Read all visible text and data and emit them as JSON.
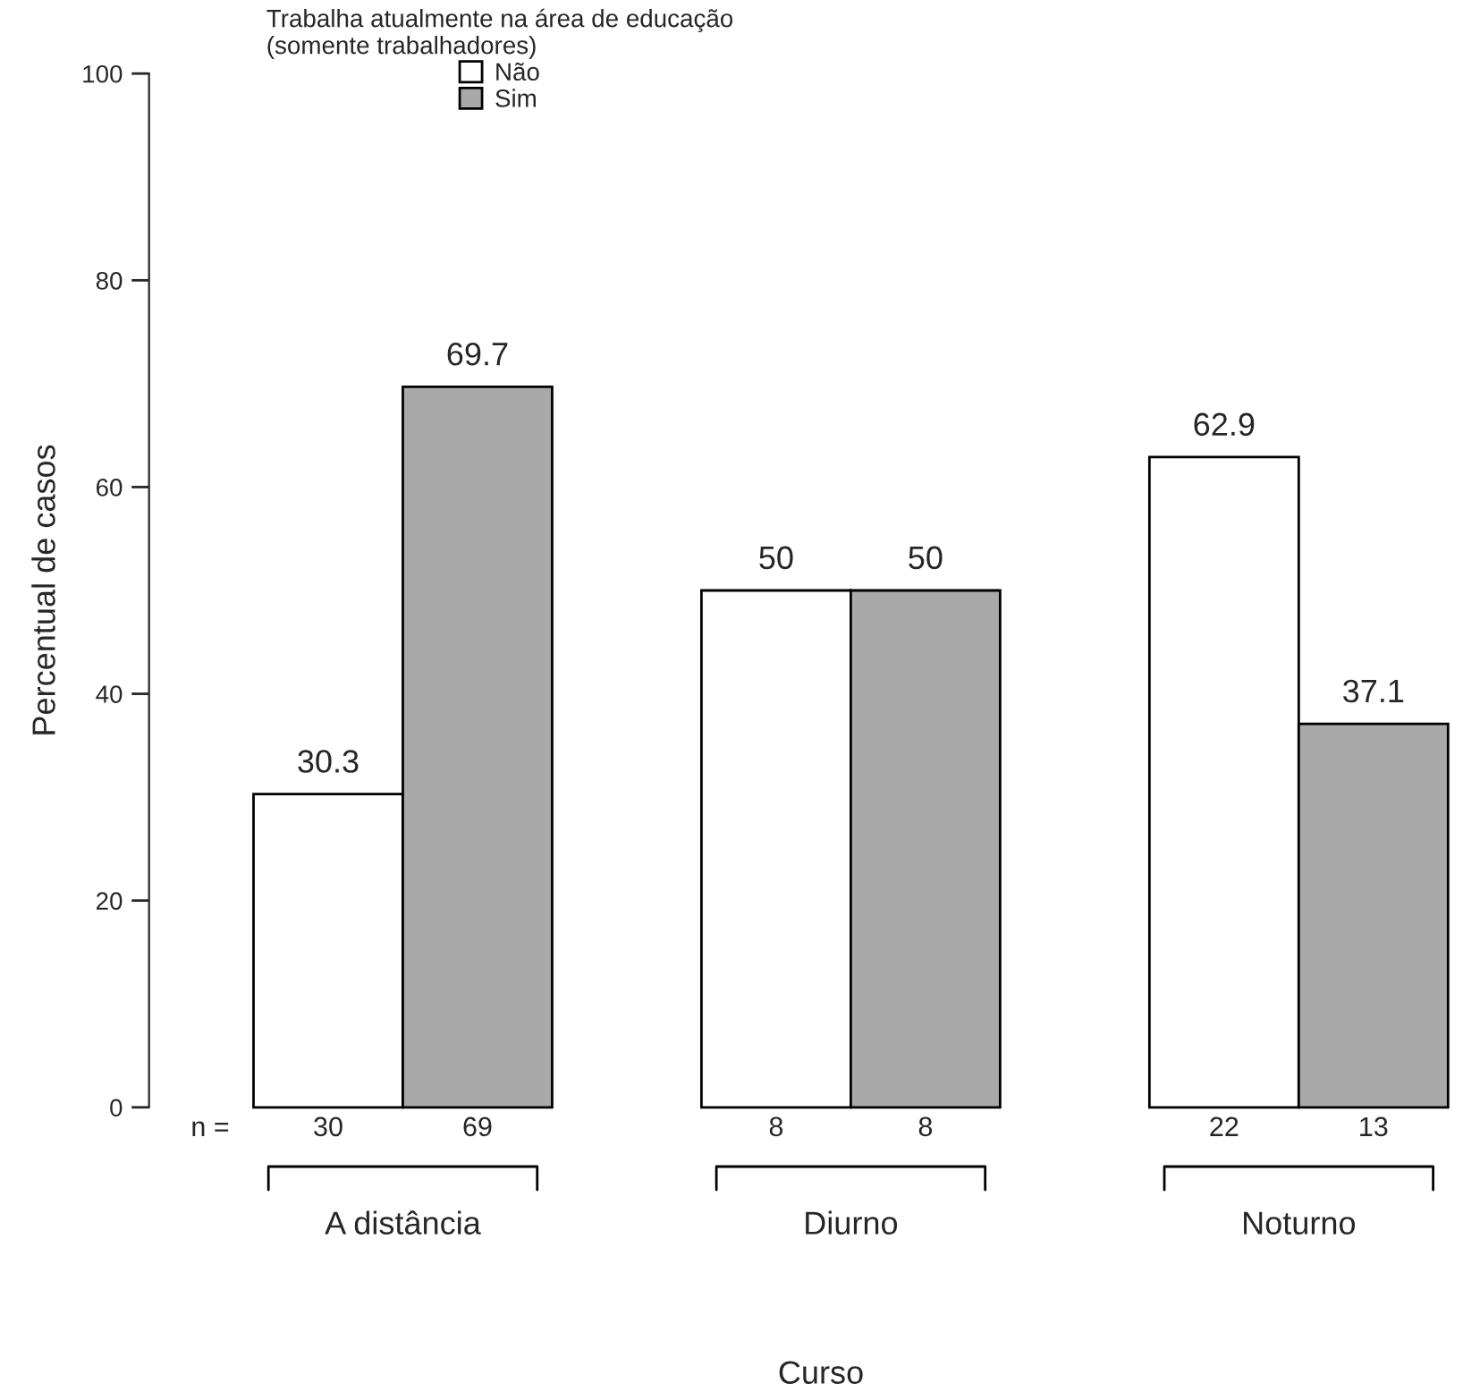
{
  "chart_data": {
    "type": "bar",
    "legend_title": "Trabalha atualmente na área de educação\n(somente trabalhadores)",
    "ylabel": "Percentual de casos",
    "xlabel": "Curso",
    "categories": [
      "A distância",
      "Diurno",
      "Noturno"
    ],
    "series": [
      {
        "name": "Não",
        "color": "#ffffff",
        "values": [
          30.3,
          50,
          62.9
        ]
      },
      {
        "name": "Sim",
        "color": "#a9a9a9",
        "values": [
          69.7,
          50,
          37.1
        ]
      }
    ],
    "ylim": [
      0,
      100
    ],
    "yticks": [
      0,
      20,
      40,
      60,
      80,
      100
    ],
    "data_labels": true,
    "legend": "top",
    "grid": false,
    "annotations": [
      "n =",
      "30",
      "69",
      "8",
      "8",
      "22",
      "13"
    ]
  }
}
